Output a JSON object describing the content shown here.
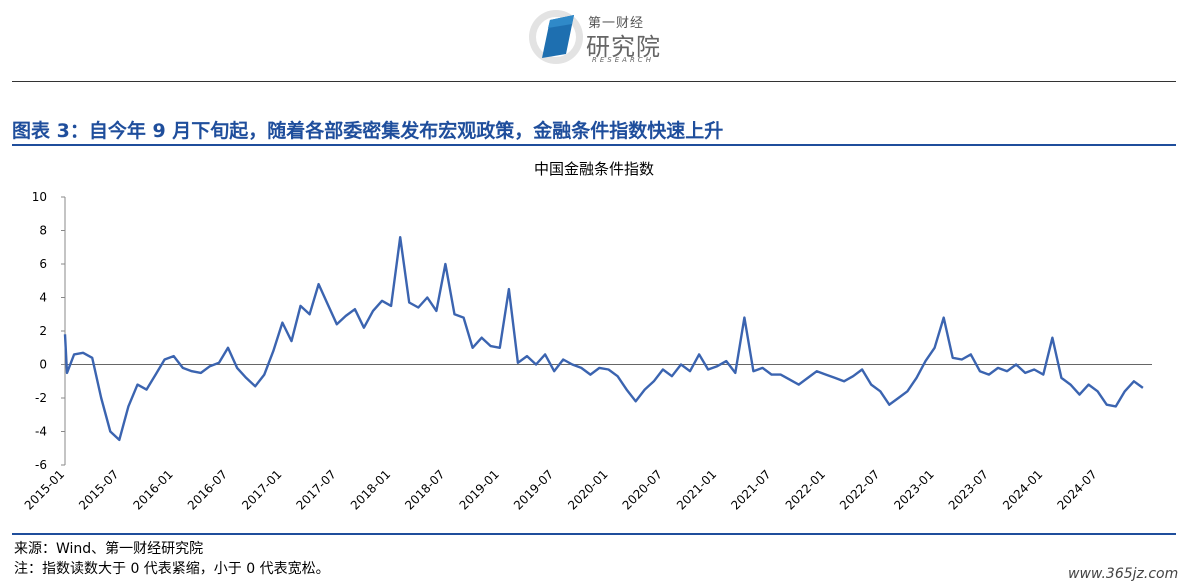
{
  "header": {
    "logo_line1": "第一财经",
    "logo_line2": "研究院",
    "logo_line3": "RESEARCH",
    "accent_color": "#1f4e9c",
    "line_color": "#3b64b0"
  },
  "figure_title": "图表 3：自今年 9 月下旬起，随着各部委密集发布宏观政策，金融条件指数快速上升",
  "footer": {
    "source": "来源：Wind、第一财经研究院",
    "note": "注：指数读数大于 0 代表紧缩，小于 0 代表宽松。",
    "watermark": "www.365jz.com"
  },
  "chart_data": {
    "type": "line",
    "title": "中国金融条件指数",
    "xlabel": "",
    "ylabel": "",
    "ylim": [
      -6,
      10
    ],
    "yticks": [
      "10",
      "8",
      "6",
      "4",
      "2",
      "0",
      "-2",
      "-4",
      "-6"
    ],
    "xticks": [
      "2015-01",
      "2015-07",
      "2016-01",
      "2016-07",
      "2017-01",
      "2017-07",
      "2018-01",
      "2018-07",
      "2019-01",
      "2019-07",
      "2020-01",
      "2020-07",
      "2021-01",
      "2021-07",
      "2022-01",
      "2022-07",
      "2023-01",
      "2023-07",
      "2024-01",
      "2024-07"
    ],
    "grid": false,
    "legend": "none",
    "series": [
      {
        "points": [
          [
            "2015-01",
            1.8
          ],
          [
            "2015-01",
            -0.5
          ],
          [
            "2015-02",
            0.6
          ],
          [
            "2015-03",
            0.7
          ],
          [
            "2015-04",
            0.4
          ],
          [
            "2015-05",
            -2.0
          ],
          [
            "2015-06",
            -4.0
          ],
          [
            "2015-07",
            -4.5
          ],
          [
            "2015-08",
            -2.5
          ],
          [
            "2015-09",
            -1.2
          ],
          [
            "2015-10",
            -1.5
          ],
          [
            "2015-11",
            -0.6
          ],
          [
            "2015-12",
            0.3
          ],
          [
            "2016-01",
            0.5
          ],
          [
            "2016-02",
            -0.2
          ],
          [
            "2016-03",
            -0.4
          ],
          [
            "2016-04",
            -0.5
          ],
          [
            "2016-05",
            -0.1
          ],
          [
            "2016-06",
            0.1
          ],
          [
            "2016-07",
            1.0
          ],
          [
            "2016-08",
            -0.2
          ],
          [
            "2016-09",
            -0.8
          ],
          [
            "2016-10",
            -1.3
          ],
          [
            "2016-11",
            -0.6
          ],
          [
            "2016-12",
            0.8
          ],
          [
            "2017-01",
            2.5
          ],
          [
            "2017-02",
            1.4
          ],
          [
            "2017-03",
            3.5
          ],
          [
            "2017-04",
            3.0
          ],
          [
            "2017-05",
            4.8
          ],
          [
            "2017-06",
            3.6
          ],
          [
            "2017-07",
            2.4
          ],
          [
            "2017-08",
            2.9
          ],
          [
            "2017-09",
            3.3
          ],
          [
            "2017-10",
            2.2
          ],
          [
            "2017-11",
            3.2
          ],
          [
            "2017-12",
            3.8
          ],
          [
            "2018-01",
            3.5
          ],
          [
            "2018-02",
            7.6
          ],
          [
            "2018-03",
            3.7
          ],
          [
            "2018-04",
            3.4
          ],
          [
            "2018-05",
            4.0
          ],
          [
            "2018-06",
            3.2
          ],
          [
            "2018-07",
            6.0
          ],
          [
            "2018-08",
            3.0
          ],
          [
            "2018-09",
            2.8
          ],
          [
            "2018-10",
            1.0
          ],
          [
            "2018-11",
            1.6
          ],
          [
            "2018-12",
            1.1
          ],
          [
            "2019-01",
            1.0
          ],
          [
            "2019-02",
            4.5
          ],
          [
            "2019-03",
            0.1
          ],
          [
            "2019-04",
            0.5
          ],
          [
            "2019-05",
            0.0
          ],
          [
            "2019-06",
            0.6
          ],
          [
            "2019-07",
            -0.4
          ],
          [
            "2019-08",
            0.3
          ],
          [
            "2019-09",
            0.0
          ],
          [
            "2019-10",
            -0.2
          ],
          [
            "2019-11",
            -0.6
          ],
          [
            "2019-12",
            -0.2
          ],
          [
            "2020-01",
            -0.3
          ],
          [
            "2020-02",
            -0.7
          ],
          [
            "2020-03",
            -1.5
          ],
          [
            "2020-04",
            -2.2
          ],
          [
            "2020-05",
            -1.5
          ],
          [
            "2020-06",
            -1.0
          ],
          [
            "2020-07",
            -0.3
          ],
          [
            "2020-08",
            -0.7
          ],
          [
            "2020-09",
            0.0
          ],
          [
            "2020-10",
            -0.4
          ],
          [
            "2020-11",
            0.6
          ],
          [
            "2020-12",
            -0.3
          ],
          [
            "2021-01",
            -0.1
          ],
          [
            "2021-02",
            0.2
          ],
          [
            "2021-03",
            -0.5
          ],
          [
            "2021-04",
            2.8
          ],
          [
            "2021-05",
            -0.4
          ],
          [
            "2021-06",
            -0.2
          ],
          [
            "2021-07",
            -0.6
          ],
          [
            "2021-08",
            -0.6
          ],
          [
            "2021-09",
            -0.9
          ],
          [
            "2021-10",
            -1.2
          ],
          [
            "2021-11",
            -0.8
          ],
          [
            "2021-12",
            -0.4
          ],
          [
            "2022-01",
            -0.6
          ],
          [
            "2022-02",
            -0.8
          ],
          [
            "2022-03",
            -1.0
          ],
          [
            "2022-04",
            -0.7
          ],
          [
            "2022-05",
            -0.3
          ],
          [
            "2022-06",
            -1.2
          ],
          [
            "2022-07",
            -1.6
          ],
          [
            "2022-08",
            -2.4
          ],
          [
            "2022-09",
            -2.0
          ],
          [
            "2022-10",
            -1.6
          ],
          [
            "2022-11",
            -0.8
          ],
          [
            "2022-12",
            0.2
          ],
          [
            "2023-01",
            1.0
          ],
          [
            "2023-02",
            2.8
          ],
          [
            "2023-03",
            0.4
          ],
          [
            "2023-04",
            0.3
          ],
          [
            "2023-05",
            0.6
          ],
          [
            "2023-06",
            -0.4
          ],
          [
            "2023-07",
            -0.6
          ],
          [
            "2023-08",
            -0.2
          ],
          [
            "2023-09",
            -0.4
          ],
          [
            "2023-10",
            0.0
          ],
          [
            "2023-11",
            -0.5
          ],
          [
            "2023-12",
            -0.3
          ],
          [
            "2024-01",
            -0.6
          ],
          [
            "2024-02",
            1.6
          ],
          [
            "2024-03",
            -0.8
          ],
          [
            "2024-04",
            -1.2
          ],
          [
            "2024-05",
            -1.8
          ],
          [
            "2024-06",
            -1.2
          ],
          [
            "2024-07",
            -1.6
          ],
          [
            "2024-08",
            -2.4
          ],
          [
            "2024-09",
            -2.5
          ],
          [
            "2024-10",
            -1.6
          ],
          [
            "2024-11",
            -1.0
          ],
          [
            "2024-12",
            -1.4
          ]
        ]
      }
    ]
  }
}
